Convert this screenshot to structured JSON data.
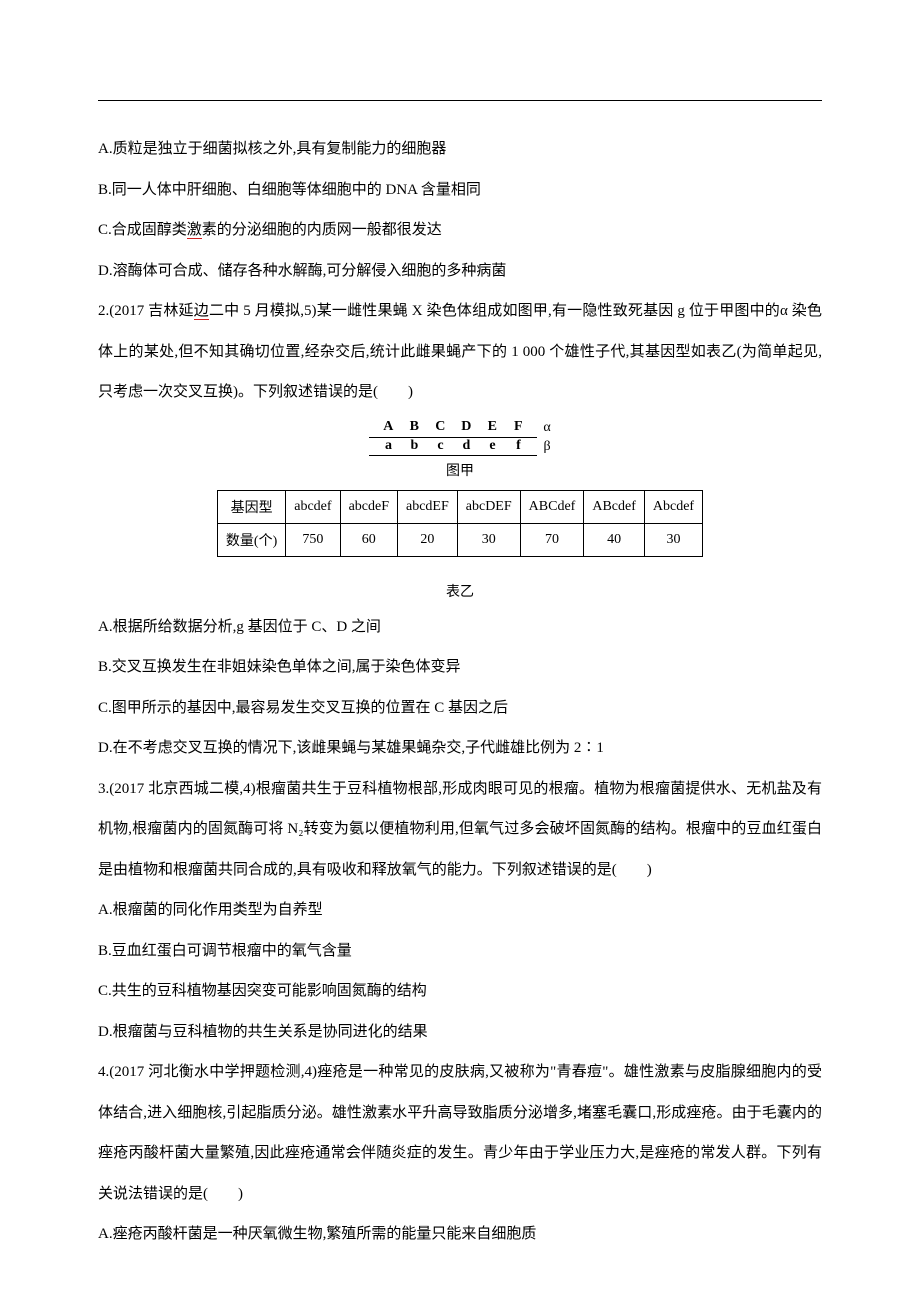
{
  "q1": {
    "optA": "A.质粒是独立于细菌拟核之外,具有复制能力的细胞器",
    "optB": "B.同一人体中肝细胞、白细胞等体细胞中的 DNA 含量相同",
    "optC_prefix": "C.合成固醇类",
    "optC_mark": "激",
    "optC_suffix": "素的分泌细胞的内质网一般都很发达",
    "optD": "D.溶酶体可合成、储存各种水解酶,可分解侵入细胞的多种病菌"
  },
  "q2": {
    "stem_prefix": "2.(2017 吉林延",
    "stem_mark": "边",
    "stem_suffix": "二中 5 月模拟,5)某一雌性果蝇 X 染色体组成如图甲,有一隐性致死基因 g 位于甲图中的α 染色体上的某处,但不知其确切位置,经杂交后,统计此雌果蝇产下的 1 000 个雄性子代,其基因型如表乙(为简单起见,只考虑一次交叉互换)。下列叙述错误的是(　　)",
    "diagram": {
      "upper": [
        "A",
        "B",
        "C",
        "D",
        "E",
        "F"
      ],
      "lower": [
        "a",
        "b",
        "c",
        "d",
        "e",
        "f"
      ],
      "upper_label": "α",
      "lower_label": "β",
      "caption": "图甲"
    },
    "table": {
      "header": [
        "基因型",
        "abcdef",
        "abcdeF",
        "abcdEF",
        "abcDEF",
        "ABCdef",
        "ABcdef",
        "Abcdef"
      ],
      "row_label": "数量(个)",
      "values": [
        "750",
        "60",
        "20",
        "30",
        "70",
        "40",
        "30"
      ],
      "caption": "表乙"
    },
    "optA": "A.根据所给数据分析,g 基因位于 C、D 之间",
    "optB": "B.交叉互换发生在非姐妹染色单体之间,属于染色体变异",
    "optC": "C.图甲所示的基因中,最容易发生交叉互换的位置在 C 基因之后",
    "optD": "D.在不考虑交叉互换的情况下,该雌果蝇与某雄果蝇杂交,子代雌雄比例为 2∶1"
  },
  "q3": {
    "stem": "3.(2017 北京西城二模,4)根瘤菌共生于豆科植物根部,形成肉眼可见的根瘤。植物为根瘤菌提供水、无机盐及有机物,根瘤菌内的固氮酶可将 N₂转变为氨以便植物利用,但氧气过多会破坏固氮酶的结构。根瘤中的豆血红蛋白是由植物和根瘤菌共同合成的,具有吸收和释放氧气的能力。下列叙述错误的是(　　)",
    "optA": "A.根瘤菌的同化作用类型为自养型",
    "optB": "B.豆血红蛋白可调节根瘤中的氧气含量",
    "optC": "C.共生的豆科植物基因突变可能影响固氮酶的结构",
    "optD": "D.根瘤菌与豆科植物的共生关系是协同进化的结果"
  },
  "q4": {
    "stem": "4.(2017 河北衡水中学押题检测,4)痤疮是一种常见的皮肤病,又被称为\"青春痘\"。雄性激素与皮脂腺细胞内的受体结合,进入细胞核,引起脂质分泌。雄性激素水平升高导致脂质分泌增多,堵塞毛囊口,形成痤疮。由于毛囊内的痤疮丙酸杆菌大量繁殖,因此痤疮通常会伴随炎症的发生。青少年由于学业压力大,是痤疮的常发人群。下列有关说法错误的是(　　)",
    "optA": "A.痤疮丙酸杆菌是一种厌氧微生物,繁殖所需的能量只能来自细胞质"
  }
}
